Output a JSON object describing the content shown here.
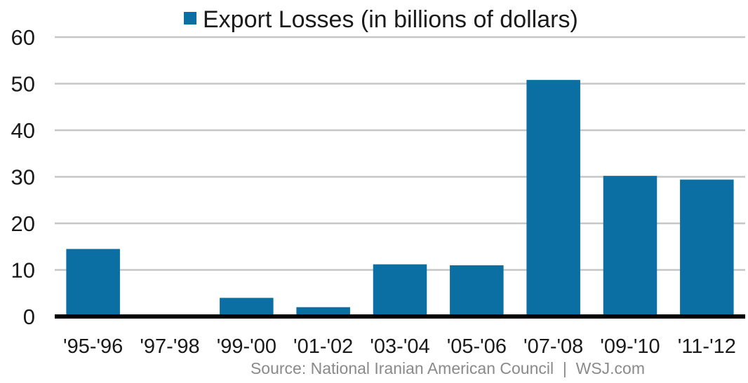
{
  "chart_data": {
    "type": "bar",
    "title": "",
    "xlabel": "",
    "ylabel": "",
    "categories": [
      "'95-'96",
      "'97-'98",
      "'99-'00",
      "'01-'02",
      "'03-'04",
      "'05-'06",
      "'07-'08",
      "'09-'10",
      "'11-'12"
    ],
    "series": [
      {
        "name": "Export Losses (in billions of dollars)",
        "color": "#0b6fa4",
        "values": [
          14.5,
          0,
          4,
          2,
          11.2,
          11,
          50.8,
          30.2,
          29.4
        ]
      }
    ],
    "ylim": [
      0,
      60
    ],
    "yticks": [
      0,
      10,
      20,
      30,
      40,
      50,
      60
    ],
    "grid": true,
    "legend": "top-center",
    "source": "Source: National Iranian American Council  |  WSJ.com"
  }
}
